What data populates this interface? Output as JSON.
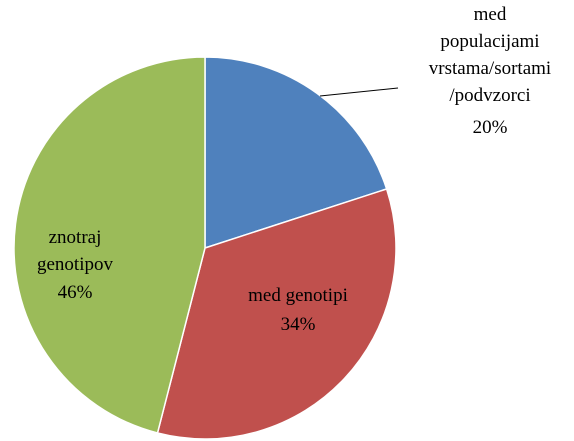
{
  "chart_data": {
    "type": "pie",
    "categories": [
      "med\npopulacijami\nvrstama/sortami\n/podvzorci",
      "med genotipi",
      "znotraj\ngenotipov"
    ],
    "values": [
      20,
      34,
      46
    ],
    "value_labels": [
      "20%",
      "34%",
      "46%"
    ],
    "colors": [
      "#4f81bd",
      "#c0504d",
      "#9bbb59"
    ]
  }
}
